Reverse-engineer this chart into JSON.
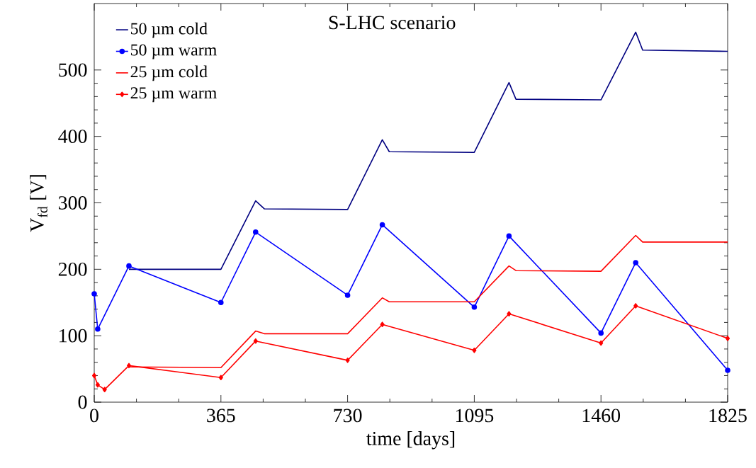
{
  "chart_data": {
    "type": "line",
    "title": "S-LHC scenario",
    "xlabel": "time [days]",
    "ylabel": "V$_{fd}$ [V]",
    "xlim": [
      0,
      1825
    ],
    "xticks": [
      0,
      365,
      730,
      1095,
      1460,
      1825
    ],
    "ylim": [
      0,
      600
    ],
    "yticks": [
      0,
      100,
      200,
      300,
      400,
      500
    ],
    "legend": "top left",
    "grid": false,
    "line_style": "solid",
    "series": [
      {
        "name": "50 µm cold",
        "color": "#000080",
        "marker": "none",
        "x": [
          100,
          365,
          465,
          490,
          730,
          830,
          850,
          1095,
          1195,
          1215,
          1460,
          1560,
          1580,
          1825
        ],
        "values": [
          200,
          200,
          303,
          291,
          290,
          395,
          377,
          376,
          481,
          456,
          455,
          557,
          530,
          528
        ]
      },
      {
        "name": "50 µm warm",
        "color": "#0000ff",
        "marker": "circle",
        "x": [
          0,
          10,
          100,
          365,
          465,
          730,
          830,
          1095,
          1195,
          1460,
          1560,
          1825
        ],
        "values": [
          163,
          110,
          205,
          150,
          256,
          161,
          267,
          143,
          250,
          104,
          210,
          48
        ]
      },
      {
        "name": "25 µm cold",
        "color": "#ff0000",
        "marker": "none",
        "x": [
          100,
          365,
          465,
          490,
          730,
          830,
          850,
          1095,
          1195,
          1215,
          1460,
          1560,
          1580,
          1825
        ],
        "values": [
          53,
          52,
          107,
          103,
          103,
          157,
          151,
          151,
          205,
          198,
          197,
          251,
          241,
          241
        ]
      },
      {
        "name": "25 µm warm",
        "color": "#ff0000",
        "marker": "diamond",
        "x": [
          0,
          10,
          30,
          100,
          365,
          465,
          730,
          830,
          1095,
          1195,
          1460,
          1560,
          1825
        ],
        "values": [
          40,
          26,
          19,
          55,
          37,
          92,
          63,
          117,
          78,
          133,
          89,
          145,
          96
        ]
      }
    ]
  }
}
